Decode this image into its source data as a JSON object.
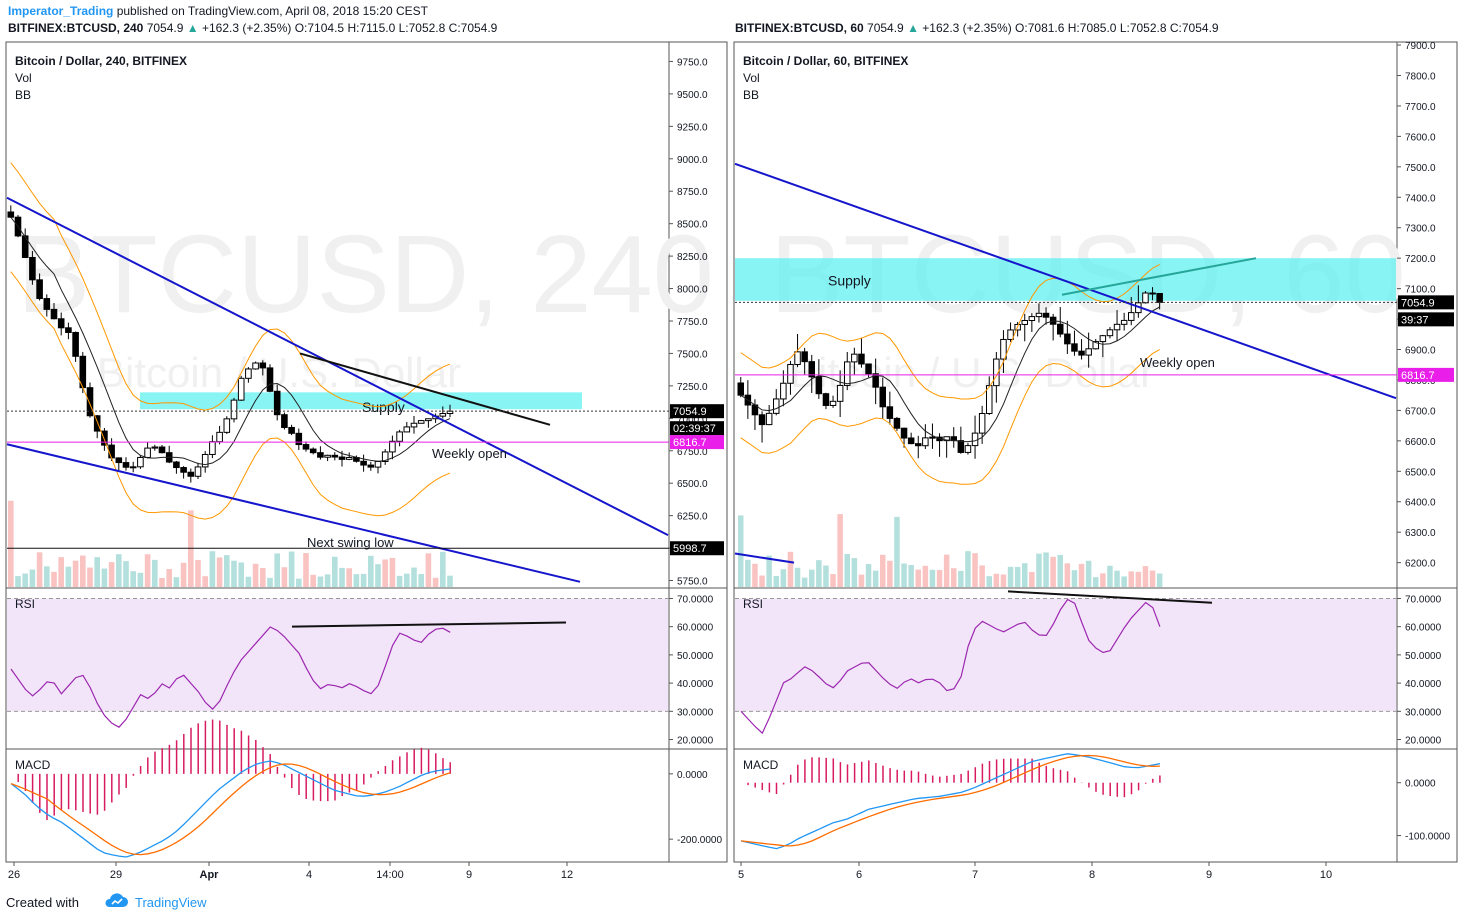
{
  "header": {
    "author": "Imperator_Trading",
    "published": "published on TradingView.com, April 08, 2018 15:20 CEST",
    "left_quote": {
      "symbol": "BITFINEX:BTCUSD, 240",
      "last": "7054.9",
      "change": "+162.3 (+2.35%)",
      "o": "O:7104.5",
      "h": "H:7115.0",
      "l": "L:7052.8",
      "c": "C:7054.9"
    },
    "right_quote": {
      "symbol": "BITFINEX:BTCUSD, 60",
      "last": "7054.9",
      "change": "+162.3 (+2.35%)",
      "o": "O:7081.6",
      "h": "H:7085.0",
      "l": "L:7052.8",
      "c": "C:7054.9"
    }
  },
  "footer": {
    "created_with": "Created with",
    "brand": "TradingView"
  },
  "chart_data": [
    {
      "type": "candlestick",
      "title": "Bitcoin / Dollar, 240, BITFINEX",
      "watermark": "BTCUSD, 240",
      "watermark_sub": "Bitcoin / U.S. Dollar",
      "indicators": [
        "Vol",
        "BB"
      ],
      "ylim": [
        5700,
        9900
      ],
      "price_ticks": [
        "9750.0",
        "9500.0",
        "9250.0",
        "9000.0",
        "8750.0",
        "8500.0",
        "8250.0",
        "8000.0",
        "7750.0",
        "7500.0",
        "7250.0",
        "7000.0",
        "6750.0",
        "6500.0",
        "6250.0",
        "6000.0",
        "5750.0"
      ],
      "price_tick_values": [
        9750,
        9500,
        9250,
        9000,
        8750,
        8500,
        8250,
        8000,
        7750,
        7500,
        7250,
        7000,
        6750,
        6500,
        6250,
        6000,
        5750
      ],
      "x_ticks": [
        "26",
        "29",
        "Apr",
        "4",
        "14:00",
        "9",
        "12"
      ],
      "labels": {
        "last_price": "7054.9",
        "countdown": "02:39:37",
        "weekly_open": "6816.7",
        "swing_low": "5998.7"
      },
      "annotations": {
        "supply": "Supply",
        "weekly_open": "Weekly open",
        "swing_low": "Next swing low"
      },
      "rsi": {
        "label": "RSI",
        "ticks": [
          "70.0000",
          "60.0000",
          "50.0000",
          "40.0000",
          "30.0000",
          "20.0000"
        ],
        "tick_values": [
          70,
          60,
          50,
          40,
          30,
          20
        ],
        "ylim": [
          17,
          73
        ]
      },
      "macd": {
        "label": "MACD",
        "ticks": [
          "0.0000",
          "-200.0000"
        ],
        "tick_values": [
          0,
          -200
        ],
        "ylim": [
          -270,
          70
        ]
      },
      "colors": {
        "up": "#26a69a",
        "down": "#ef5350",
        "candle": "#000000",
        "bb": "#ff9800",
        "trend": "#1515cc",
        "supply": "#62f0f0",
        "weekly": "#e91ee9",
        "rsi": "#9c27b0",
        "rsi_bg": "#f3e5f9",
        "macd": "#2196f3",
        "signal": "#ff6d00",
        "hist": "#d81b60"
      }
    },
    {
      "type": "candlestick",
      "title": "Bitcoin / Dollar, 60, BITFINEX",
      "watermark": "BTCUSD, 60",
      "watermark_sub": "Bitcoin / U.S. Dollar",
      "indicators": [
        "Vol",
        "BB"
      ],
      "ylim": [
        6120,
        7910
      ],
      "price_ticks": [
        "7900.0",
        "7800.0",
        "7700.0",
        "7600.0",
        "7500.0",
        "7400.0",
        "7300.0",
        "7200.0",
        "7100.0",
        "7000.0",
        "6900.0",
        "6800.0",
        "6700.0",
        "6600.0",
        "6500.0",
        "6400.0",
        "6300.0",
        "6200.0"
      ],
      "price_tick_values": [
        7900,
        7800,
        7700,
        7600,
        7500,
        7400,
        7300,
        7200,
        7100,
        7000,
        6900,
        6800,
        6700,
        6600,
        6500,
        6400,
        6300,
        6200
      ],
      "x_ticks": [
        "5",
        "6",
        "7",
        "8",
        "9",
        "10"
      ],
      "labels": {
        "last_price": "7054.9",
        "countdown": "39:37",
        "weekly_open": "6816.7"
      },
      "annotations": {
        "supply": "Supply",
        "weekly_open": "Weekly open"
      },
      "rsi": {
        "label": "RSI",
        "ticks": [
          "70.0000",
          "60.0000",
          "50.0000",
          "40.0000",
          "30.0000",
          "20.0000"
        ],
        "tick_values": [
          70,
          60,
          50,
          40,
          30,
          20
        ],
        "ylim": [
          17,
          73
        ]
      },
      "macd": {
        "label": "MACD",
        "ticks": [
          "0.0000",
          "-100.0000"
        ],
        "tick_values": [
          0,
          -100
        ],
        "ylim": [
          -150,
          60
        ]
      },
      "colors": {
        "up": "#26a69a",
        "down": "#ef5350",
        "candle": "#000000",
        "bb": "#ff9800",
        "trend": "#1515cc",
        "supply": "#62f0f0",
        "weekly": "#e91ee9",
        "rsi": "#9c27b0",
        "rsi_bg": "#f3e5f9",
        "macd": "#2196f3",
        "signal": "#ff6d00",
        "hist": "#d81b60"
      }
    }
  ]
}
